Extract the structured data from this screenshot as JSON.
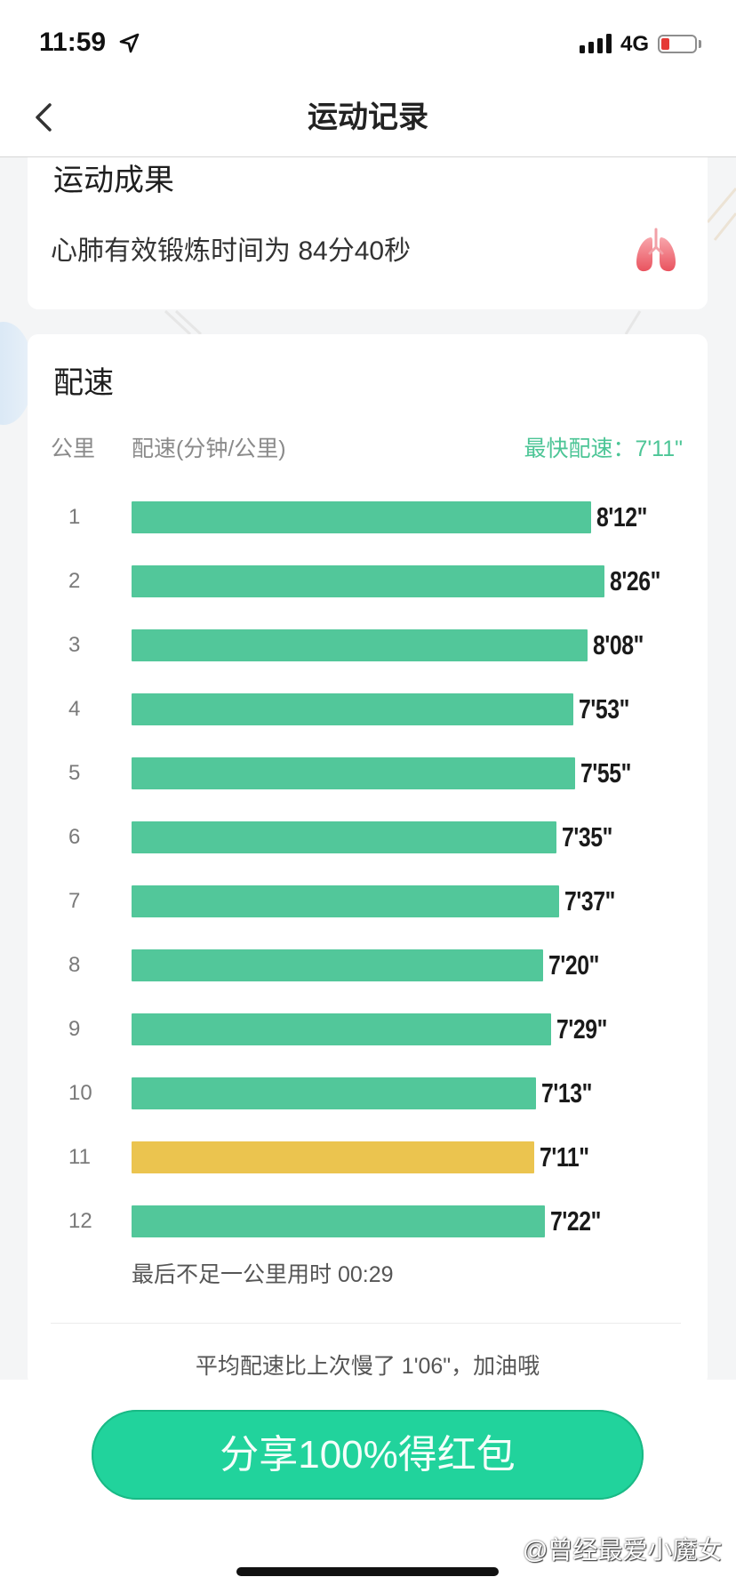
{
  "status_bar": {
    "time": "11:59",
    "network": "4G",
    "battery_level": 0.25
  },
  "nav": {
    "title": "运动记录"
  },
  "result_card": {
    "title": "运动成果",
    "text": "心肺有效锻炼时间为 84分40秒"
  },
  "pace_card": {
    "last_partial": "最后不足一公里用时 00:29",
    "summary": "平均配速比上次慢了 1'06\"，加油哦"
  },
  "chart_data": {
    "type": "bar",
    "orientation": "horizontal",
    "title": "配速",
    "ylabel": "公里",
    "xlabel": "配速(分钟/公里)",
    "annotation": "最快配速：7'11\"",
    "categories": [
      "1",
      "2",
      "3",
      "4",
      "5",
      "6",
      "7",
      "8",
      "9",
      "10",
      "11",
      "12"
    ],
    "values": [
      "8'12\"",
      "8'26\"",
      "8'08\"",
      "7'53\"",
      "7'55\"",
      "7'35\"",
      "7'37\"",
      "7'20\"",
      "7'29\"",
      "7'13\"",
      "7'11\"",
      "7'22\""
    ],
    "highlight_index": 10,
    "grid": false
  },
  "share_button": {
    "label": "分享100%得红包"
  },
  "watermark": {
    "text": "@曾经最爱小魔女"
  },
  "icons": {
    "back": "chevron-left-icon",
    "location": "location-arrow-icon",
    "signal": "cellular-signal-icon",
    "battery": "battery-icon",
    "lungs": "lungs-icon",
    "watermark": "weibo-icon"
  },
  "colors": {
    "accent": "#52c79a",
    "highlight": "#ebc44f",
    "fastest_text": "#4cc596",
    "button": "#21d39c",
    "battery_low": "#e53935"
  }
}
